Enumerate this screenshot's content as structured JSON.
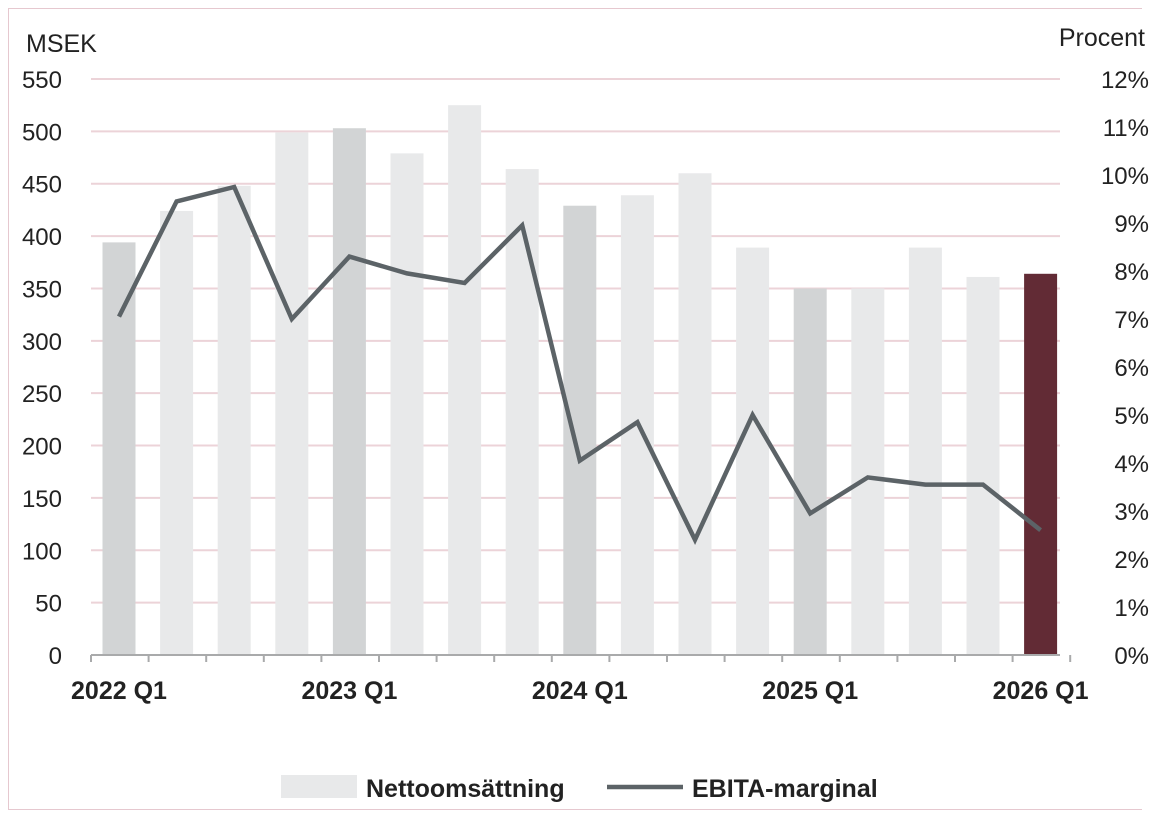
{
  "chart_data": {
    "type": "bar",
    "title": "",
    "y_left_label": "MSEK",
    "y_right_label": "Procent",
    "y_left_range": [
      0,
      550
    ],
    "y_right_range": [
      0,
      12
    ],
    "y_left_ticks": [
      "0",
      "50",
      "100",
      "150",
      "200",
      "250",
      "300",
      "350",
      "400",
      "450",
      "500",
      "550"
    ],
    "y_right_ticks": [
      "0%",
      "1%",
      "2%",
      "3%",
      "4%",
      "5%",
      "6%",
      "7%",
      "8%",
      "9%",
      "10%",
      "11%",
      "12%"
    ],
    "x_tick_labels": [
      "2022 Q1",
      "2023 Q1",
      "2024 Q1",
      "2025 Q1",
      "2026 Q1"
    ],
    "categories": [
      "2022 Q1",
      "2022 Q2",
      "2022 Q3",
      "2022 Q4",
      "2023 Q1",
      "2023 Q2",
      "2023 Q3",
      "2023 Q4",
      "2024 Q1",
      "2024 Q2",
      "2024 Q3",
      "2024 Q4",
      "2025 Q1",
      "2025 Q2",
      "2025 Q3",
      "2025 Q4",
      "2026 Q1"
    ],
    "series": [
      {
        "name": "Nettoomsättning",
        "type": "bar",
        "axis": "left",
        "values": [
          394,
          424,
          448,
          499,
          503,
          479,
          525,
          464,
          429,
          439,
          460,
          389,
          350,
          350,
          389,
          361,
          364
        ]
      },
      {
        "name": "EBITA-marginal",
        "type": "line",
        "axis": "right",
        "unit": "%",
        "values": [
          7.05,
          9.45,
          9.75,
          7.0,
          8.3,
          7.95,
          7.75,
          8.95,
          4.05,
          4.85,
          2.4,
          5.0,
          2.95,
          3.7,
          3.55,
          3.55,
          2.6
        ]
      }
    ],
    "grid": true,
    "legend_position": "bottom-center",
    "colors": {
      "bar_default": "#e8e9ea",
      "bar_q1": "#d2d4d5",
      "bar_latest": "#622b35",
      "line": "#5c6367",
      "grid": "#ecd3d8",
      "axis": "#a9aaab"
    }
  }
}
